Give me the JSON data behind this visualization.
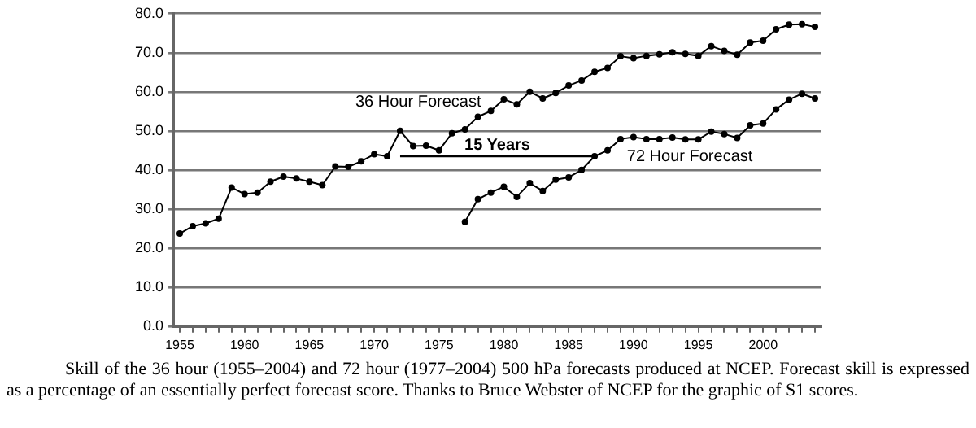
{
  "chart_data": {
    "type": "line",
    "x": [
      1955,
      1956,
      1957,
      1958,
      1959,
      1960,
      1961,
      1962,
      1963,
      1964,
      1965,
      1966,
      1967,
      1968,
      1969,
      1970,
      1971,
      1972,
      1973,
      1974,
      1975,
      1976,
      1977,
      1978,
      1979,
      1980,
      1981,
      1982,
      1983,
      1984,
      1985,
      1986,
      1987,
      1988,
      1989,
      1990,
      1991,
      1992,
      1993,
      1994,
      1995,
      1996,
      1997,
      1998,
      1999,
      2000,
      2001,
      2002,
      2003,
      2004
    ],
    "series": [
      {
        "name": "36 Hour Forecast",
        "color": "#000000",
        "values": [
          23.7,
          25.6,
          26.3,
          27.5,
          35.5,
          33.8,
          34.2,
          37.0,
          38.3,
          37.8,
          37.0,
          36.1,
          40.9,
          40.8,
          42.2,
          44.0,
          43.5,
          50.0,
          46.1,
          46.2,
          45.0,
          49.4,
          50.4,
          53.6,
          55.1,
          58.1,
          56.8,
          60.0,
          58.3,
          59.7,
          61.6,
          62.9,
          65.1,
          66.1,
          69.1,
          68.6,
          69.2,
          69.6,
          70.1,
          69.7,
          69.2,
          71.7,
          70.5,
          69.5,
          72.6,
          73.1,
          76.0,
          77.2,
          77.3,
          76.6
        ]
      },
      {
        "name": "72 Hour Forecast",
        "color": "#000000",
        "values": [
          null,
          null,
          null,
          null,
          null,
          null,
          null,
          null,
          null,
          null,
          null,
          null,
          null,
          null,
          null,
          null,
          null,
          null,
          null,
          null,
          null,
          null,
          26.7,
          32.5,
          34.2,
          35.7,
          33.1,
          36.6,
          34.6,
          37.5,
          38.1,
          40.0,
          43.5,
          45.0,
          47.9,
          48.4,
          47.9,
          47.9,
          48.3,
          47.8,
          47.8,
          49.8,
          49.2,
          48.2,
          51.4,
          51.9,
          55.5,
          58.0,
          59.5,
          58.3
        ]
      },
      {
        "type": "line",
        "marker": "none",
        "color": "#000000",
        "x": [
          1972,
          1987
        ],
        "values": [
          43.5,
          43.5
        ]
      }
    ],
    "xlim": [
      1954.5,
      2004.5
    ],
    "xticks": [
      {
        "value": 1955,
        "label": "1955"
      },
      {
        "value": 1956,
        "label": null
      },
      {
        "value": 1957,
        "label": null
      },
      {
        "value": 1958,
        "label": null
      },
      {
        "value": 1959,
        "label": null
      },
      {
        "value": 1960,
        "label": "1960"
      },
      {
        "value": 1961,
        "label": null
      },
      {
        "value": 1962,
        "label": null
      },
      {
        "value": 1963,
        "label": null
      },
      {
        "value": 1964,
        "label": null
      },
      {
        "value": 1965,
        "label": "1965"
      },
      {
        "value": 1966,
        "label": null
      },
      {
        "value": 1967,
        "label": null
      },
      {
        "value": 1968,
        "label": null
      },
      {
        "value": 1969,
        "label": null
      },
      {
        "value": 1970,
        "label": "1970"
      },
      {
        "value": 1971,
        "label": null
      },
      {
        "value": 1972,
        "label": null
      },
      {
        "value": 1973,
        "label": null
      },
      {
        "value": 1974,
        "label": null
      },
      {
        "value": 1975,
        "label": "1975"
      },
      {
        "value": 1976,
        "label": null
      },
      {
        "value": 1977,
        "label": null
      },
      {
        "value": 1978,
        "label": null
      },
      {
        "value": 1979,
        "label": null
      },
      {
        "value": 1980,
        "label": "1980"
      },
      {
        "value": 1981,
        "label": null
      },
      {
        "value": 1982,
        "label": null
      },
      {
        "value": 1983,
        "label": null
      },
      {
        "value": 1984,
        "label": null
      },
      {
        "value": 1985,
        "label": "1985"
      },
      {
        "value": 1986,
        "label": null
      },
      {
        "value": 1987,
        "label": null
      },
      {
        "value": 1988,
        "label": null
      },
      {
        "value": 1989,
        "label": null
      },
      {
        "value": 1990,
        "label": "1990"
      },
      {
        "value": 1991,
        "label": null
      },
      {
        "value": 1992,
        "label": null
      },
      {
        "value": 1993,
        "label": null
      },
      {
        "value": 1994,
        "label": null
      },
      {
        "value": 1995,
        "label": "1995"
      },
      {
        "value": 1996,
        "label": null
      },
      {
        "value": 1997,
        "label": null
      },
      {
        "value": 1998,
        "label": null
      },
      {
        "value": 1999,
        "label": null
      },
      {
        "value": 2000,
        "label": "2000"
      },
      {
        "value": 2001,
        "label": null
      },
      {
        "value": 2002,
        "label": null
      },
      {
        "value": 2003,
        "label": null
      },
      {
        "value": 2004,
        "label": null
      }
    ],
    "ylim": [
      0,
      80
    ],
    "yticks": [
      {
        "value": 0,
        "label": "0.0"
      },
      {
        "value": 10,
        "label": "10.0"
      },
      {
        "value": 20,
        "label": "20.0"
      },
      {
        "value": 30,
        "label": "30.0"
      },
      {
        "value": 40,
        "label": "40.0"
      },
      {
        "value": 50,
        "label": "50.0"
      },
      {
        "value": 60,
        "label": "60.0"
      },
      {
        "value": 70,
        "label": "70.0"
      },
      {
        "value": 80,
        "label": "80.0"
      }
    ],
    "grid": "y",
    "marker": "circle",
    "line_style": "solid",
    "annotations": [
      {
        "text": "15 Years",
        "x": 1979.5,
        "y": 43.5
      },
      "Skill of the 36 hour (1955–2004) and 72 hour (1977–2004) 500 hPa forecasts produced at NCEP. Forecast skill is expressed as a percentage of an essentially perfect forecast score. Thanks to Bruce Webster of NCEP for the graphic of S1 scores."
    ]
  }
}
